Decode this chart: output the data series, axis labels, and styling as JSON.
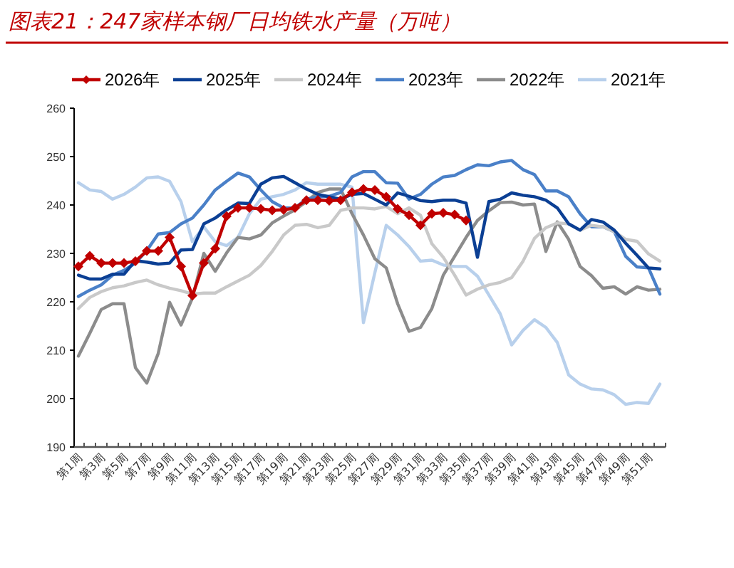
{
  "chart_data": {
    "type": "line",
    "title": "图表21：247家样本钢厂日均铁水产量（万吨）",
    "categories": [
      "第1周",
      null,
      "第3周",
      null,
      "第5周",
      null,
      "第7周",
      null,
      "第9周",
      null,
      "第11周",
      null,
      "第13周",
      null,
      "第15周",
      null,
      "第17周",
      null,
      "第19周",
      null,
      "第21周",
      null,
      "第23周",
      null,
      "第25周",
      null,
      "第27周",
      null,
      "第29周",
      null,
      "第31周",
      null,
      "第33周",
      null,
      "第35周",
      null,
      "第37周",
      null,
      "第39周",
      null,
      "第41周",
      null,
      "第43周",
      null,
      "第45周",
      null,
      "第47周",
      null,
      "第49周",
      null,
      "第51周",
      null
    ],
    "ylim": [
      190,
      260
    ],
    "yticks": [
      190,
      200,
      210,
      220,
      230,
      240,
      250,
      260
    ],
    "grid": false,
    "legend": "top",
    "series": [
      {
        "name": "2026年",
        "color": "#c00000",
        "marker": "diamond",
        "values": [
          227.3,
          229.5,
          228,
          228,
          228,
          228.4,
          230.5,
          230.5,
          233.3,
          227.3,
          221.3,
          228,
          231,
          237.7,
          239.4,
          239.4,
          239.2,
          238.9,
          239,
          239.4,
          241,
          241,
          240.9,
          241,
          242.6,
          243.3,
          243.1,
          241.7,
          239.2,
          237.9,
          235.8,
          238.2,
          238.4,
          238,
          236.8,
          null,
          null,
          null,
          null,
          null,
          null,
          null,
          null,
          null,
          null,
          null,
          null,
          null,
          null,
          null,
          null,
          null
        ]
      },
      {
        "name": "2025年",
        "color": "#0b3f94",
        "values": [
          225.5,
          224.7,
          224.7,
          225.7,
          225.7,
          228.5,
          228.2,
          227.8,
          228,
          230.7,
          230.8,
          236.1,
          237.3,
          239,
          240.4,
          240.3,
          244.3,
          245.6,
          245.9,
          244.6,
          243.3,
          242.2,
          241.7,
          241.2,
          242.2,
          242.4,
          241.2,
          240,
          242.5,
          241.8,
          240.9,
          240.7,
          241,
          241,
          240.4,
          229.2,
          240.7,
          241.2,
          242.5,
          242,
          241.7,
          241,
          239.4,
          236.1,
          234.8,
          237,
          236.5,
          234.8,
          232.1,
          229.6,
          227,
          226.8
        ]
      },
      {
        "name": "2024年",
        "color": "#c9c9c9",
        "values": [
          218.6,
          220.9,
          222.1,
          222.9,
          223.3,
          224,
          224.5,
          223.5,
          222.8,
          222.3,
          221.6,
          221.8,
          221.8,
          223.1,
          224.3,
          225.5,
          227.5,
          230.4,
          233.8,
          235.8,
          236,
          235.3,
          235.8,
          238.9,
          239.4,
          239.4,
          239.2,
          239.7,
          238.2,
          239.4,
          237.9,
          232,
          229.2,
          225.5,
          221.4,
          222.6,
          223.5,
          224,
          225,
          228.4,
          233.1,
          235.3,
          236.3,
          236.1,
          234.8,
          235.8,
          235.5,
          234.5,
          232.9,
          232.5,
          229.9,
          228.4
        ]
      },
      {
        "name": "2023年",
        "color": "#4a80c8",
        "values": [
          221.1,
          222.4,
          223.5,
          225.5,
          226.5,
          228,
          230.6,
          234,
          234.3,
          236.1,
          237.3,
          240,
          243.1,
          244.9,
          246.6,
          245.8,
          243.1,
          240.7,
          239.4,
          239.4,
          241.2,
          241.7,
          241.8,
          242.6,
          245.8,
          246.9,
          246.9,
          244.6,
          244.5,
          241.2,
          242.2,
          244.3,
          245.8,
          246.1,
          247.3,
          248.3,
          248.1,
          248.9,
          249.2,
          247.3,
          246.3,
          242.9,
          242.9,
          241.7,
          238.2,
          235.5,
          235.5,
          234.5,
          229.4,
          227.2,
          227,
          221.6
        ]
      },
      {
        "name": "2022年",
        "color": "#8c8c8c",
        "values": [
          208.8,
          213.5,
          218.4,
          219.6,
          219.6,
          206.4,
          203.2,
          209.3,
          219.9,
          215.2,
          220.8,
          230,
          226.3,
          230.1,
          233.3,
          233,
          233.8,
          236.3,
          237.7,
          239,
          240.7,
          242.6,
          243.3,
          243.3,
          238.2,
          233.8,
          228.9,
          227,
          219.6,
          213.9,
          214.7,
          218.6,
          225.5,
          229.4,
          233.3,
          236.8,
          238.8,
          240.5,
          240.6,
          240,
          240.2,
          230.4,
          236.5,
          232.9,
          227.3,
          225.4,
          222.8,
          223.1,
          221.6,
          223.1,
          222.4,
          222.6
        ]
      },
      {
        "name": "2021年",
        "color": "#b8d0ec",
        "values": [
          244.6,
          243.1,
          242.8,
          241.2,
          242.2,
          243.7,
          245.6,
          245.8,
          244.9,
          240.7,
          232.4,
          235.5,
          232.4,
          231.6,
          233.3,
          238.2,
          241.2,
          241.7,
          242.2,
          243.1,
          244.6,
          244.3,
          244.3,
          244.3,
          243.7,
          215.7,
          226,
          235.8,
          233.8,
          231.4,
          228.4,
          228.6,
          227.6,
          227.3,
          227.3,
          225.3,
          221.4,
          217.5,
          211.1,
          214.1,
          216.3,
          214.7,
          211.6,
          204.9,
          203,
          202,
          201.8,
          200.8,
          198.8,
          199.2,
          199,
          203
        ]
      }
    ]
  }
}
